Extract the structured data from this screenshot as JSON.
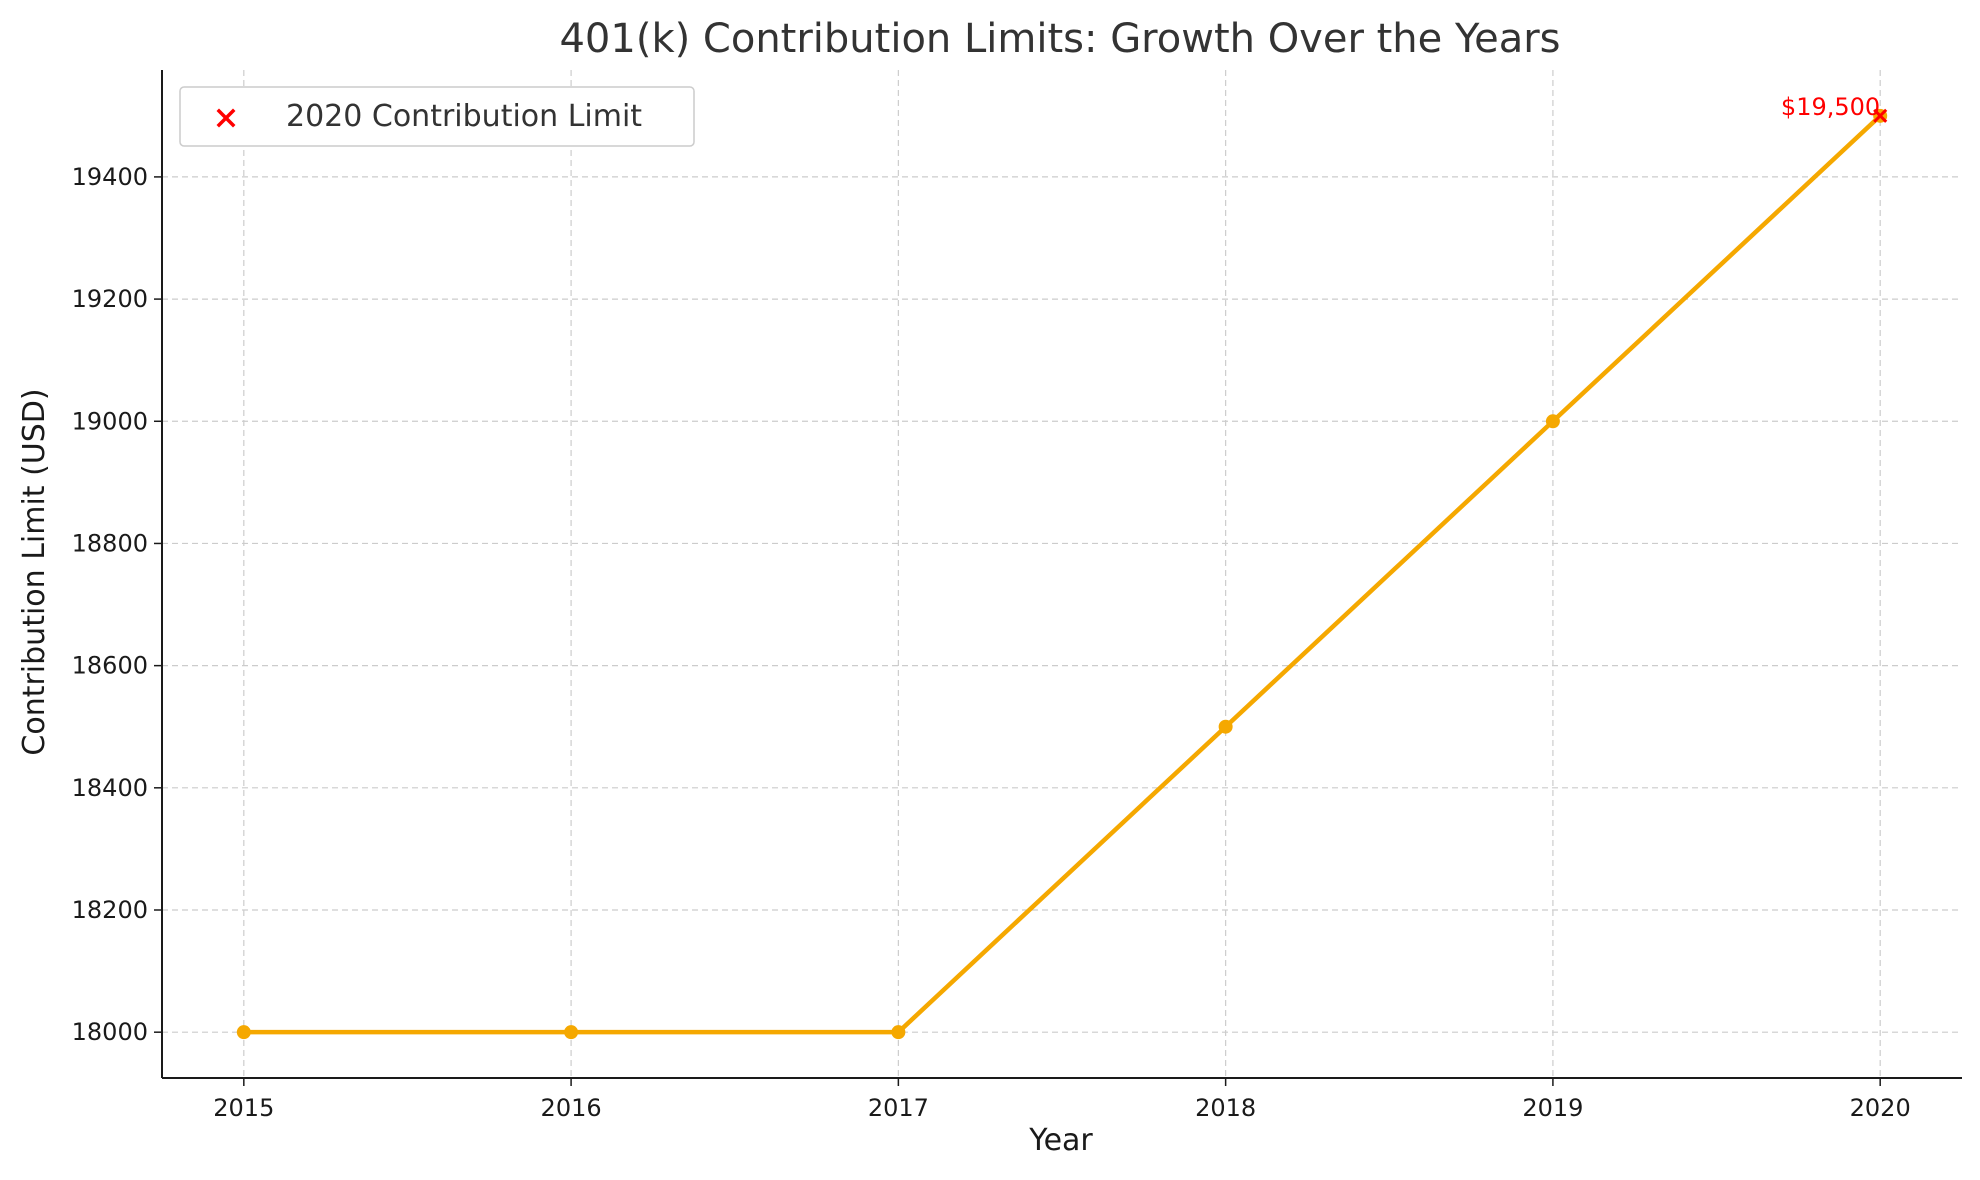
{
  "chart_data": {
    "type": "line",
    "title": "401(k) Contribution Limits: Growth Over the Years",
    "xlabel": "Year",
    "ylabel": "Contribution Limit (USD)",
    "x": [
      2015,
      2016,
      2017,
      2018,
      2019,
      2020
    ],
    "series": [
      {
        "values": [
          18000,
          18000,
          18000,
          18500,
          19000,
          19500
        ],
        "color": "#f5a800",
        "marker": "circle"
      }
    ],
    "highlight": {
      "name": "2020 Contribution Limit",
      "x": 2020,
      "y": 19500,
      "marker": "x",
      "color": "#ff0000"
    },
    "annotation": {
      "text": "$19,500",
      "x": 2020,
      "y": 19500,
      "color": "#ff0000"
    },
    "xticks": [
      "2015",
      "2016",
      "2017",
      "2018",
      "2019",
      "2020"
    ],
    "yticks": [
      18000,
      18200,
      18400,
      18600,
      18800,
      19000,
      19200,
      19400
    ],
    "xlim": [
      2014.75,
      2020.25
    ],
    "ylim": [
      17925,
      19575
    ],
    "grid": true,
    "legend_position": "top-left"
  }
}
